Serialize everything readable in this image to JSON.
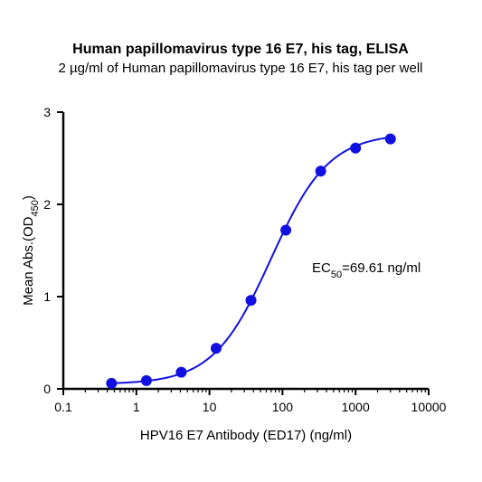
{
  "chart_data": {
    "type": "scatter",
    "title": "Human papillomavirus type 16 E7, his tag, ELISA",
    "subtitle": "2 µg/ml of Human papillomavirus type 16 E7, his tag per well",
    "xlabel": "HPV16 E7 Antibody (ED17) (ng/ml)",
    "ylabel_main": "Mean Abs.(OD",
    "ylabel_sub": "450",
    "ylabel_end": ")",
    "x_scale": "log",
    "xlim": [
      0.1,
      10000
    ],
    "ylim": [
      0,
      3
    ],
    "x_ticks": [
      0.1,
      1,
      10,
      100,
      1000,
      10000
    ],
    "x_tick_labels": [
      "0.1",
      "1",
      "10",
      "100",
      "1000",
      "10000"
    ],
    "y_ticks": [
      0,
      1,
      2,
      3
    ],
    "y_tick_labels": [
      "0",
      "1",
      "2",
      "3"
    ],
    "grid": false,
    "legend": "none",
    "color": "#1010e0",
    "series": [
      {
        "x": [
          0.457,
          1.372,
          4.115,
          12.35,
          37.04,
          111.1,
          333.3,
          1000,
          3000
        ],
        "y": [
          0.06,
          0.09,
          0.18,
          0.44,
          0.96,
          1.72,
          2.36,
          2.61,
          2.71
        ]
      }
    ],
    "fit": {
      "bottom": 0.05,
      "top": 2.77,
      "ec50": 69.61,
      "hill": 1.1
    },
    "annotation": {
      "main": "EC",
      "sub": "50",
      "value": "=69.61 ng/ml"
    }
  }
}
